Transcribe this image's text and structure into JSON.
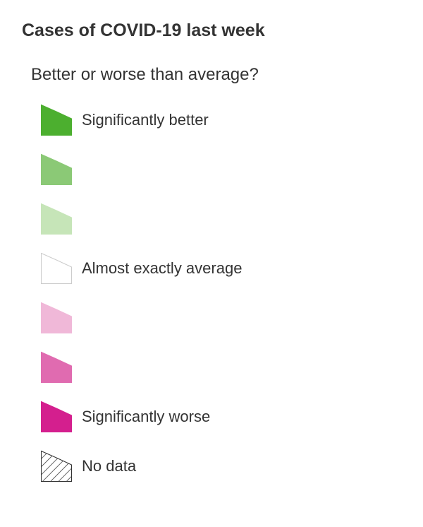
{
  "legend": {
    "title": "Cases of COVID-19 last week",
    "subtitle": "Better or worse than average?",
    "items": [
      {
        "label": "Significantly better",
        "color": "#4caf2f",
        "border": "#4caf2f",
        "pattern": "solid"
      },
      {
        "label": "",
        "color": "#8bc976",
        "border": "#8bc976",
        "pattern": "solid"
      },
      {
        "label": "",
        "color": "#c6e5b8",
        "border": "#c6e5b8",
        "pattern": "solid"
      },
      {
        "label": "Almost exactly average",
        "color": "#ffffff",
        "border": "#cccccc",
        "pattern": "solid"
      },
      {
        "label": "",
        "color": "#f0b8d8",
        "border": "#f0b8d8",
        "pattern": "solid"
      },
      {
        "label": "",
        "color": "#e06bb0",
        "border": "#e06bb0",
        "pattern": "solid"
      },
      {
        "label": "Significantly worse",
        "color": "#d41f8e",
        "border": "#d41f8e",
        "pattern": "solid"
      },
      {
        "label": "No data",
        "color": "#ffffff",
        "border": "#333333",
        "pattern": "hatched"
      }
    ]
  }
}
